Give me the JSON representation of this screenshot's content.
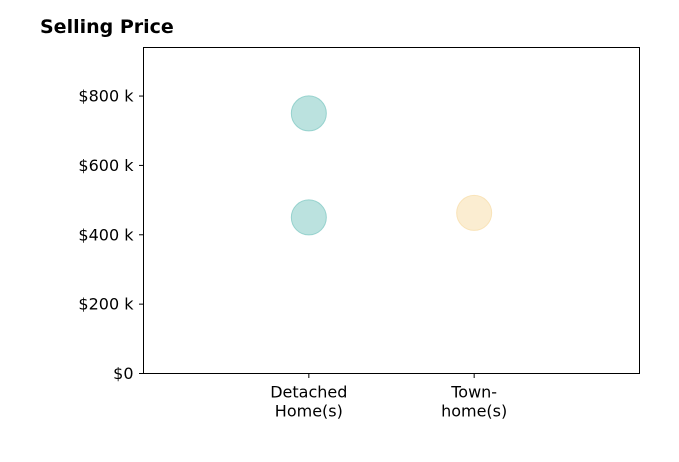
{
  "chart_data": {
    "type": "scatter",
    "title": "Selling Price",
    "xlabel": "",
    "ylabel": "",
    "categories": [
      [
        "Detached",
        "Home(s)"
      ],
      [
        "Town-",
        "home(s)"
      ]
    ],
    "points": [
      {
        "category": 0,
        "value": 750,
        "color": "#84cbc5"
      },
      {
        "category": 0,
        "value": 450,
        "color": "#84cbc5"
      },
      {
        "category": 1,
        "value": 463,
        "color": "#f7deac"
      }
    ],
    "ylim": [
      0,
      940
    ],
    "yticks": [
      0,
      200,
      400,
      600,
      800
    ],
    "ytick_labels": [
      "$0",
      "$200 k",
      "$400 k",
      "$600 k",
      "$800 k"
    ],
    "grid": false,
    "point_opacity": 0.55
  }
}
